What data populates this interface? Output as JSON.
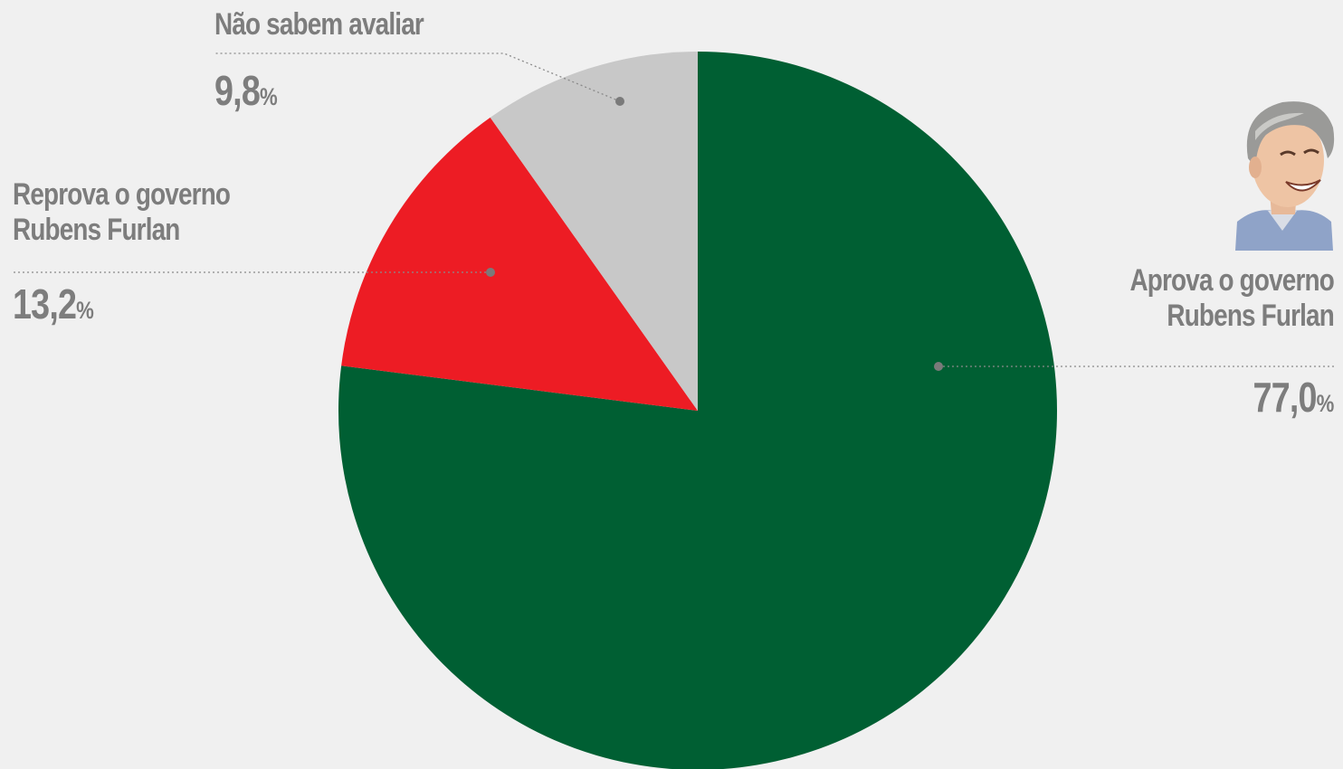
{
  "chart_data": {
    "type": "pie",
    "slices": [
      {
        "label": "Aprova o governo Rubens Furlan",
        "label_lines": [
          "Aprova o governo",
          "Rubens Furlan"
        ],
        "value": 77.0,
        "display_value": "77,0",
        "unit": "%",
        "color": "#005f33"
      },
      {
        "label": "Reprova o governo Rubens Furlan",
        "label_lines": [
          "Reprova o governo",
          "Rubens Furlan"
        ],
        "value": 13.2,
        "display_value": "13,2",
        "unit": "%",
        "color": "#ed1c24"
      },
      {
        "label": "Não sabem avaliar",
        "label_lines": [
          "Não sabem avaliar"
        ],
        "value": 9.8,
        "display_value": "9,8",
        "unit": "%",
        "color": "#c8c8c8"
      }
    ],
    "start": "12 o'clock",
    "direction": "clockwise",
    "legend": "none",
    "grid": false
  },
  "colors": {
    "background": "#f0f0f0",
    "label_text": "#7d7d7d",
    "leader_line": "#8a8a8a"
  },
  "illustration": "caricature-portrait"
}
